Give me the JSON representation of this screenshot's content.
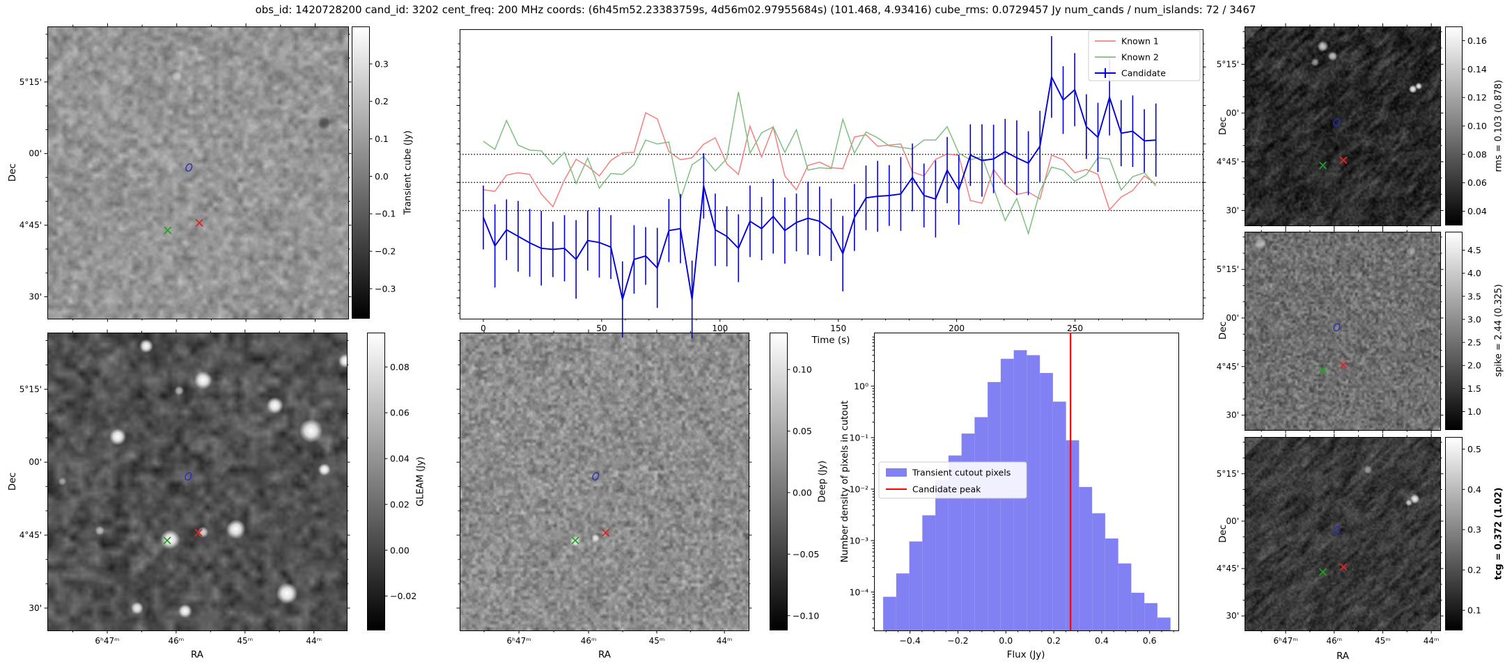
{
  "title": "obs_id: 1420728200 cand_id: 3202 cent_freq: 200 MHz coords: (6h45m52.23383759s, 4d56m02.97955684s) (101.468, 4.93416) cube_rms: 0.0729457 Jy num_cands / num_islands: 72 / 3467",
  "colors": {
    "known1": "#f47f7f",
    "known2": "#7fbf7f",
    "candidate": "#0000dd",
    "hist_bar": "#8181f3",
    "candidate_peak_line": "#ff0000",
    "marker_green": "#22a022",
    "marker_red": "#e32222",
    "marker_blue": "#2a2ac8",
    "dotted_line": "#000000"
  },
  "axes": {
    "dec_label": "Dec",
    "ra_label": "RA",
    "dec_ticks": [
      "5°15'",
      "00'",
      "4°45'",
      "30'"
    ],
    "ra_ticks": [
      "6ʰ47ᵐ",
      "46ᵐ",
      "45ᵐ",
      "44ᵐ"
    ]
  },
  "panels": {
    "transient_cube": {
      "colorbar_label": "Transient cube (Jy)",
      "cb_ticks": [
        "0.3",
        "0.2",
        "0.1",
        "0.0",
        "−0.1",
        "−0.2",
        "−0.3"
      ]
    },
    "gleam": {
      "colorbar_label": "GLEAM (Jy)",
      "cb_ticks": [
        "0.08",
        "0.06",
        "0.04",
        "0.02",
        "0.00",
        "−0.02"
      ]
    },
    "deep": {
      "colorbar_label": "Deep (Jy)",
      "cb_ticks": [
        "0.10",
        "0.05",
        "0.00",
        "−0.05",
        "−0.10"
      ]
    },
    "rms": {
      "colorbar_label": "rms = 0.103 (0.878)",
      "cb_ticks": [
        "0.16",
        "0.14",
        "0.12",
        "0.10",
        "0.08",
        "0.06",
        "0.04"
      ]
    },
    "spike": {
      "colorbar_label": "spike = 2.44 (0.325)",
      "cb_ticks": [
        "4.5",
        "4.0",
        "3.5",
        "3.0",
        "2.5",
        "2.0",
        "1.5",
        "1.0"
      ]
    },
    "tcg": {
      "colorbar_label": "tcg = 0.372 (1.02)",
      "cb_ticks": [
        "0.5",
        "0.4",
        "0.3",
        "0.2",
        "0.1"
      ],
      "bold": true
    }
  },
  "markers": {
    "contour": {
      "x": 0.47,
      "y": 0.485
    },
    "green_x": {
      "x": 0.4,
      "y": 0.698
    },
    "red_x": {
      "x": 0.505,
      "y": 0.672
    }
  },
  "chart_data": [
    {
      "type": "line",
      "xlabel": "Time (s)",
      "x_ticks": [
        0,
        50,
        100,
        150,
        200,
        250
      ],
      "xlim": [
        -10,
        304
      ],
      "ylim": [
        -0.354,
        0.398
      ],
      "hlines": [
        0.0729457,
        0.0,
        -0.0729457
      ],
      "t0": 0,
      "dt": 4.9,
      "legend_position": "upper right",
      "series": [
        {
          "name": "Known 1",
          "values": [
            -0.019,
            -0.023,
            0.019,
            0.025,
            0.021,
            -0.03,
            -0.063,
            0.007,
            0.06,
            0.042,
            0.017,
            0.057,
            0.077,
            0.078,
            0.181,
            0.165,
            0.08,
            0.059,
            0.064,
            0.099,
            0.116,
            0.048,
            0.021,
            0.146,
            0.066,
            0.144,
            0.017,
            -0.019,
            0.044,
            0.053,
            0.038,
            0.036,
            0.118,
            0.124,
            0.094,
            0.097,
            0.1,
            0.027,
            0.017,
            0.06,
            0.074,
            0.07,
            -0.047,
            -0.054,
            0.034,
            -0.007,
            -0.031,
            -0.025,
            -0.043,
            0.071,
            0.059,
            0.025,
            0.034,
            0.021,
            -0.071,
            -0.038,
            -0.021,
            0.017,
            -0.004
          ]
        },
        {
          "name": "Known 2",
          "values": [
            0.107,
            0.086,
            0.161,
            0.097,
            0.084,
            0.082,
            0.047,
            0.078,
            -0.003,
            0.063,
            -0.015,
            0.023,
            0.021,
            0.046,
            0.11,
            0.1,
            0.105,
            -0.044,
            0.046,
            0.067,
            0.03,
            0.062,
            0.235,
            0.076,
            0.129,
            0.144,
            0.078,
            0.137,
            0.032,
            0.038,
            0.036,
            0.164,
            0.076,
            0.131,
            0.116,
            0.095,
            0.091,
            0.087,
            0.11,
            0.11,
            0.145,
            0.076,
            0.059,
            0.067,
            -0.015,
            -0.099,
            -0.042,
            -0.133,
            -0.023,
            0.04,
            0.032,
            0.003,
            0.02,
            0.064,
            0.061,
            -0.02,
            0.015,
            0.025,
            -0.009
          ]
        },
        {
          "name": "Candidate",
          "values": [
            -0.091,
            -0.165,
            -0.123,
            -0.14,
            -0.157,
            -0.171,
            -0.174,
            -0.171,
            -0.2,
            -0.151,
            -0.156,
            -0.168,
            -0.304,
            -0.2,
            -0.191,
            -0.222,
            -0.125,
            -0.12,
            -0.304,
            -0.009,
            -0.123,
            -0.14,
            -0.171,
            -0.101,
            -0.12,
            -0.088,
            -0.125,
            -0.104,
            -0.093,
            -0.101,
            -0.123,
            -0.185,
            -0.091,
            -0.04,
            -0.036,
            -0.034,
            -0.03,
            0.013,
            -0.034,
            -0.043,
            0.032,
            -0.019,
            0.071,
            0.057,
            0.061,
            0.08,
            0.064,
            0.05,
            0.094,
            0.274,
            0.214,
            0.241,
            0.145,
            0.117,
            0.221,
            0.128,
            0.133,
            0.108,
            0.11
          ],
          "errors": [
            0.083,
            0.108,
            0.079,
            0.092,
            0.088,
            0.097,
            0.072,
            0.086,
            0.102,
            0.078,
            0.091,
            0.083,
            0.099,
            0.089,
            0.075,
            0.104,
            0.082,
            0.09,
            0.101,
            0.085,
            0.094,
            0.078,
            0.088,
            0.093,
            0.082,
            0.097,
            0.086,
            0.075,
            0.095,
            0.09,
            0.081,
            0.098,
            0.087,
            0.084,
            0.092,
            0.079,
            0.096,
            0.088,
            0.083,
            0.1,
            0.086,
            0.091,
            0.08,
            0.094,
            0.089,
            0.085,
            0.097,
            0.083,
            0.092,
            0.106,
            0.088,
            0.095,
            0.084,
            0.09,
            0.099,
            0.086,
            0.093,
            0.082,
            0.095
          ]
        }
      ]
    },
    {
      "type": "bar",
      "xlabel": "Flux (Jy)",
      "ylabel": "Number density of pixels in cutout",
      "x_ticks": [
        -0.4,
        -0.2,
        0.0,
        0.2,
        0.4,
        0.6
      ],
      "y_tick_labels": [
        "10⁰",
        "10⁻¹",
        "10⁻²",
        "10⁻³",
        "10⁻⁴"
      ],
      "y_tick_values": [
        1,
        0.1,
        0.01,
        0.001,
        0.0001
      ],
      "xlim": [
        -0.55,
        0.72
      ],
      "ylog_lim": [
        -4.745,
        1.04
      ],
      "bin_start": -0.512,
      "bin_width": 0.0545,
      "values": [
        8.1e-05,
        0.00023,
        0.00096,
        0.0031,
        0.015,
        0.045,
        0.12,
        0.25,
        1.2,
        3.4,
        5.0,
        4.0,
        1.8,
        0.5,
        0.089,
        0.011,
        0.0034,
        0.0011,
        0.00036,
        9.7e-05,
        6.1e-05,
        3.2e-05
      ],
      "vline": 0.27,
      "legend": [
        "Transient cutout pixels",
        "Candidate peak"
      ],
      "grid": false
    }
  ]
}
